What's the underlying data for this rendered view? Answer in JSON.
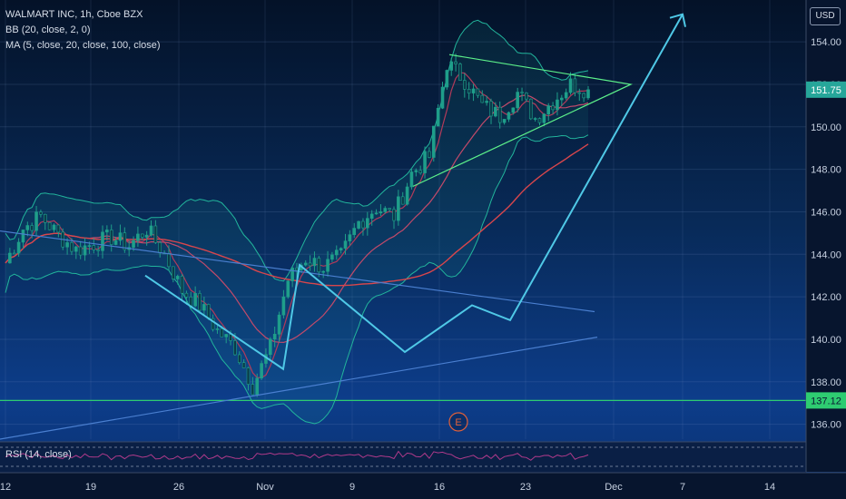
{
  "legend": {
    "title": "WALMART INC, 1h, Cboe BZX",
    "bb": "BB (20, close, 2, 0)",
    "ma": "MA (5, close, 20, close, 100, close)"
  },
  "rsi_label": "RSI (14, close)",
  "currency": "USD",
  "earnings_marker": "E",
  "colors": {
    "candle": "#1f9e8a",
    "bollinger": "#22b59c",
    "ma5": "#b23a5a",
    "ma20": "#c24a6a",
    "ma100": "#d8464c",
    "pattern": "#4fc8e6",
    "triangle": "#5cf08a",
    "trendline": "#4a7fd0",
    "support": "#2ecc71"
  },
  "chart_data": {
    "type": "candlestick",
    "title": "WALMART INC, 1h, Cboe BZX",
    "y_axis": {
      "ticks": [
        136.0,
        138.0,
        140.0,
        142.0,
        144.0,
        146.0,
        148.0,
        150.0,
        152.0,
        154.0
      ],
      "range": [
        135.3,
        155.8
      ],
      "side": "right"
    },
    "x_axis": {
      "ticks": [
        "12",
        "19",
        "26",
        "Nov",
        "9",
        "16",
        "23",
        "Dec",
        "7",
        "14"
      ]
    },
    "last_price": "151.75",
    "support_level": "137.12",
    "price_path": [
      [
        "Oct 12",
        143.6
      ],
      [
        "Oct 13",
        145.2
      ],
      [
        "Oct 14",
        145.8
      ],
      [
        "Oct 15",
        144.9
      ],
      [
        "Oct 16",
        144.2
      ],
      [
        "Oct 19",
        144.5
      ],
      [
        "Oct 20",
        144.8
      ],
      [
        "Oct 21",
        144.4
      ],
      [
        "Oct 22",
        145.2
      ],
      [
        "Oct 23",
        144.0
      ],
      [
        "Oct 26",
        142.3
      ],
      [
        "Oct 27",
        141.6
      ],
      [
        "Oct 28",
        140.4
      ],
      [
        "Oct 29",
        139.6
      ],
      [
        "Oct 30",
        137.8
      ],
      [
        "Nov 2",
        139.6
      ],
      [
        "Nov 3",
        142.8
      ],
      [
        "Nov 4",
        143.8
      ],
      [
        "Nov 5",
        143.4
      ],
      [
        "Nov 6",
        143.9
      ],
      [
        "Nov 9",
        145.5
      ],
      [
        "Nov 10",
        146.2
      ],
      [
        "Nov 11",
        145.8
      ],
      [
        "Nov 12",
        147.8
      ],
      [
        "Nov 13",
        148.6
      ],
      [
        "Nov 16",
        153.0
      ],
      [
        "Nov 17",
        152.2
      ],
      [
        "Nov 18",
        151.0
      ],
      [
        "Nov 19",
        150.5
      ],
      [
        "Nov 20",
        151.6
      ],
      [
        "Nov 23",
        150.4
      ],
      [
        "Nov 24",
        151.2
      ],
      [
        "Nov 25",
        152.0
      ],
      [
        "Nov 27",
        151.75
      ]
    ],
    "indicators": [
      "Bollinger Bands (20, 2)",
      "MA 5",
      "MA 20",
      "MA 100",
      "RSI (14)"
    ],
    "drawings": [
      "symmetrical triangle with projected breakout arrow",
      "descending trendline",
      "ascending trendline",
      "horizontal support at 137.12"
    ]
  }
}
